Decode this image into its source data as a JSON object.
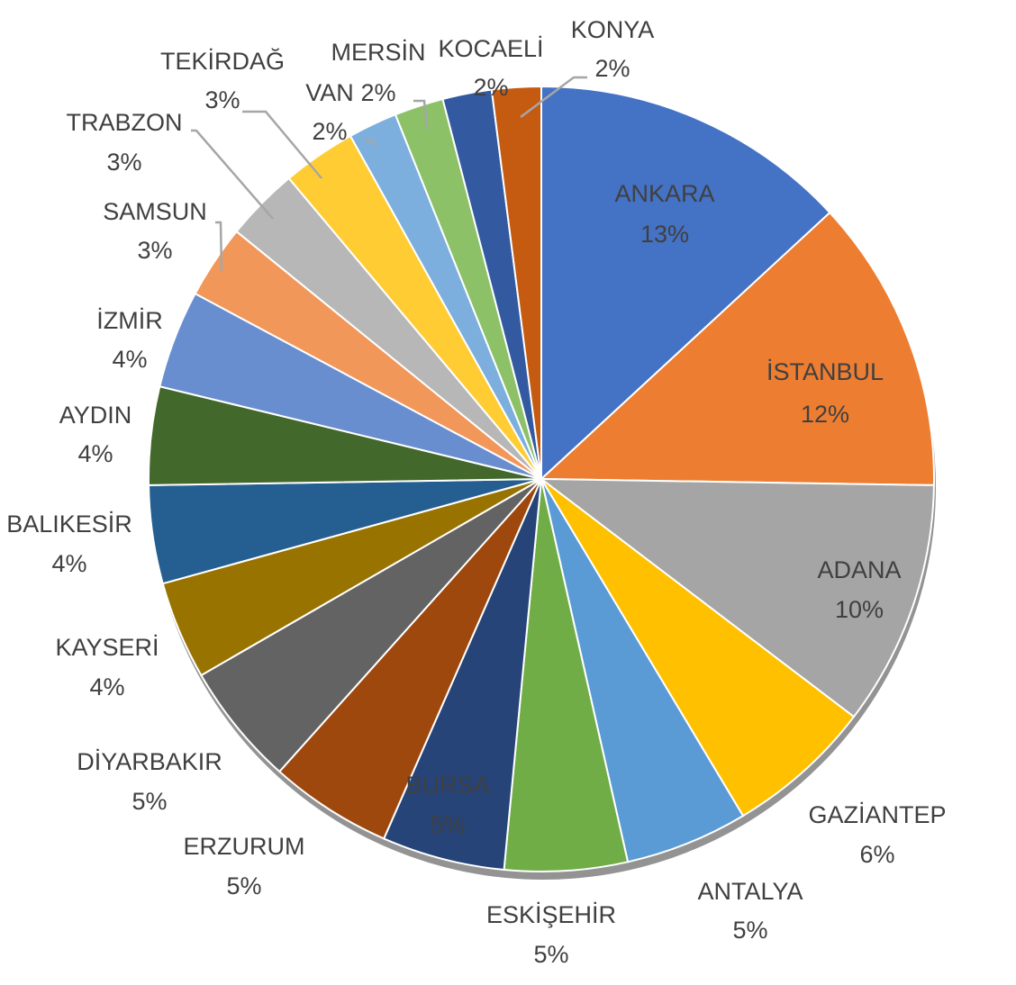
{
  "chart_data": {
    "type": "pie",
    "title": "",
    "slices": [
      {
        "label": "ANKARA",
        "value": 13,
        "value_label": "13%",
        "color": "#4472c4"
      },
      {
        "label": "İSTANBUL",
        "value": 12,
        "value_label": "12%",
        "color": "#ed7d31"
      },
      {
        "label": "ADANA",
        "value": 10,
        "value_label": "10%",
        "color": "#a5a5a5"
      },
      {
        "label": "GAZİANTEP",
        "value": 6,
        "value_label": "6%",
        "color": "#ffc000"
      },
      {
        "label": "ANTALYA",
        "value": 5,
        "value_label": "5%",
        "color": "#5b9bd5"
      },
      {
        "label": "ESKİŞEHİR",
        "value": 5,
        "value_label": "5%",
        "color": "#70ad47"
      },
      {
        "label": "BURSA",
        "value": 5,
        "value_label": "5%",
        "color": "#264478"
      },
      {
        "label": "ERZURUM",
        "value": 5,
        "value_label": "5%",
        "color": "#9e480e"
      },
      {
        "label": "DİYARBAKIR",
        "value": 5,
        "value_label": "5%",
        "color": "#636363"
      },
      {
        "label": "KAYSERİ",
        "value": 4,
        "value_label": "4%",
        "color": "#997300"
      },
      {
        "label": "BALIKESİR",
        "value": 4,
        "value_label": "4%",
        "color": "#255e91"
      },
      {
        "label": "AYDIN",
        "value": 4,
        "value_label": "4%",
        "color": "#43682b"
      },
      {
        "label": "İZMİR",
        "value": 4,
        "value_label": "4%",
        "color": "#698ed0"
      },
      {
        "label": "SAMSUN",
        "value": 3,
        "value_label": "3%",
        "color": "#f1975a"
      },
      {
        "label": "TRABZON",
        "value": 3,
        "value_label": "3%",
        "color": "#b7b7b7"
      },
      {
        "label": "TEKİRDAĞ",
        "value": 3,
        "value_label": "3%",
        "color": "#ffcd33"
      },
      {
        "label": "VAN",
        "value": 2,
        "value_label": "2%",
        "color": "#7cafdd"
      },
      {
        "label": "MERSİN",
        "value": 2,
        "value_label": "2%",
        "color": "#8cc168"
      },
      {
        "label": "KOCAELİ",
        "value": 2,
        "value_label": "2%",
        "color": "#335aa1"
      },
      {
        "label": "KONYA",
        "value": 2,
        "value_label": "2%",
        "color": "#c55a11"
      }
    ],
    "legend": "none",
    "data_labels": "category and percentage"
  }
}
